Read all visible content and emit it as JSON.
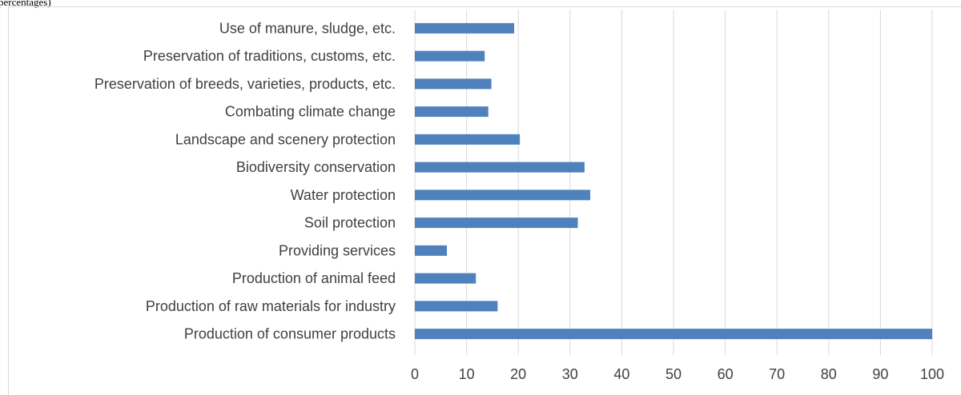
{
  "caption": {
    "fragment": "percentages)"
  },
  "chart_data": {
    "type": "bar",
    "orientation": "horizontal",
    "categories": [
      "Use of manure, sludge, etc.",
      "Preservation of traditions, customs, etc.",
      "Preservation of breeds, varieties, products, etc.",
      "Combating climate change",
      "Landscape and scenery protection",
      "Biodiversity conservation",
      "Water protection",
      "Soil protection",
      "Providing services",
      "Production of animal feed",
      "Production of raw materials for industry",
      "Production of consumer products"
    ],
    "values": [
      19.2,
      13.5,
      14.8,
      14.2,
      20.3,
      32.8,
      33.9,
      31.5,
      6.2,
      11.8,
      16.0,
      100.0
    ],
    "xlim": [
      0,
      100
    ],
    "xticks": [
      0,
      10,
      20,
      30,
      40,
      50,
      60,
      70,
      80,
      90,
      100
    ],
    "title": "",
    "xlabel": "",
    "ylabel": "",
    "grid": "vertical",
    "legend": "none",
    "bar_color": "#4f81bd",
    "grid_color": "#d9d9d9"
  }
}
